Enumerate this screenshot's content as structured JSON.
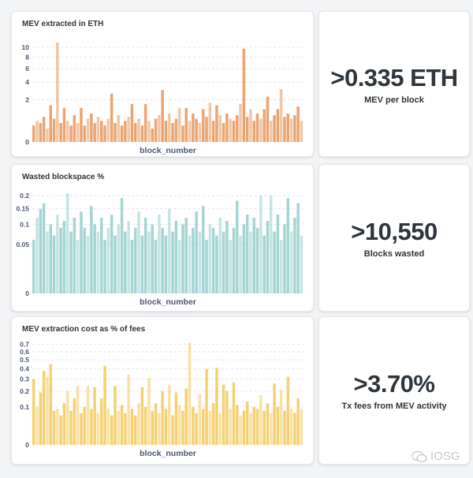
{
  "chart_data": [
    {
      "type": "bar",
      "title": "MEV extracted in ETH",
      "xlabel": "block_number",
      "ylabel": "",
      "yscale": "sqrt",
      "ylim": [
        0,
        11
      ],
      "yticks": [
        0,
        2,
        4,
        6,
        8,
        10
      ],
      "grid": true,
      "color": "#e9a06b",
      "values": [
        0.3,
        0.5,
        0.4,
        0.7,
        0.2,
        1.5,
        0.6,
        11,
        0.4,
        1.3,
        0.5,
        0.3,
        0.8,
        0.4,
        1.3,
        0.3,
        0.6,
        0.9,
        0.4,
        0.7,
        0.5,
        0.3,
        0.6,
        2.6,
        0.4,
        0.8,
        0.3,
        0.5,
        0.7,
        1.6,
        0.4,
        0.6,
        0.3,
        1.6,
        0.5,
        0.2,
        0.6,
        0.8,
        3.0,
        0.5,
        0.9,
        0.4,
        0.6,
        1.3,
        0.3,
        1.3,
        0.5,
        0.9,
        0.6,
        0.4,
        1.2,
        0.7,
        1.7,
        0.5,
        1.5,
        0.8,
        0.4,
        0.9,
        0.6,
        0.5,
        0.8,
        1.6,
        9.7,
        0.7,
        1.2,
        0.5,
        0.9,
        0.6,
        1.2,
        2.3,
        0.5,
        0.8,
        1.2,
        3.1,
        0.7,
        0.9,
        0.6,
        0.8,
        1.4,
        0.5
      ]
    },
    {
      "type": "bar",
      "title": "Wasted blockspace %",
      "xlabel": "block_number",
      "ylabel": "",
      "yscale": "sqrt",
      "ylim": [
        0,
        0.22
      ],
      "yticks": [
        0,
        0.05,
        0.1,
        0.15,
        0.2
      ],
      "grid": true,
      "color": "#9fd3d2",
      "values": [
        0.06,
        0.12,
        0.15,
        0.17,
        0.08,
        0.1,
        0.07,
        0.13,
        0.09,
        0.11,
        0.21,
        0.08,
        0.12,
        0.06,
        0.14,
        0.09,
        0.07,
        0.16,
        0.1,
        0.08,
        0.12,
        0.06,
        0.09,
        0.13,
        0.07,
        0.1,
        0.19,
        0.08,
        0.11,
        0.06,
        0.09,
        0.14,
        0.07,
        0.12,
        0.08,
        0.1,
        0.06,
        0.13,
        0.09,
        0.07,
        0.15,
        0.08,
        0.11,
        0.06,
        0.1,
        0.12,
        0.07,
        0.09,
        0.14,
        0.08,
        0.16,
        0.06,
        0.1,
        0.09,
        0.07,
        0.12,
        0.08,
        0.11,
        0.06,
        0.09,
        0.18,
        0.07,
        0.1,
        0.13,
        0.08,
        0.12,
        0.09,
        0.2,
        0.07,
        0.11,
        0.2,
        0.08,
        0.13,
        0.06,
        0.1,
        0.19,
        0.08,
        0.12,
        0.17,
        0.07
      ]
    },
    {
      "type": "bar",
      "title": "MEV extraction cost as % of fees",
      "xlabel": "block_number",
      "ylabel": "",
      "yscale": "sqrt",
      "ylim": [
        0,
        0.75
      ],
      "yticks": [
        0,
        0.1,
        0.2,
        0.3,
        0.4,
        0.5,
        0.6,
        0.7
      ],
      "grid": true,
      "color": "#f4cf6b",
      "values": [
        0.3,
        0.1,
        0.19,
        0.38,
        0.32,
        0.45,
        0.08,
        0.09,
        0.06,
        0.12,
        0.2,
        0.08,
        0.15,
        0.24,
        0.07,
        0.1,
        0.24,
        0.09,
        0.23,
        0.07,
        0.15,
        0.43,
        0.09,
        0.06,
        0.24,
        0.08,
        0.11,
        0.07,
        0.34,
        0.09,
        0.06,
        0.12,
        0.23,
        0.1,
        0.31,
        0.08,
        0.12,
        0.07,
        0.2,
        0.09,
        0.25,
        0.06,
        0.19,
        0.11,
        0.08,
        0.22,
        0.72,
        0.1,
        0.07,
        0.18,
        0.09,
        0.4,
        0.08,
        0.12,
        0.41,
        0.07,
        0.25,
        0.2,
        0.09,
        0.27,
        0.11,
        0.06,
        0.08,
        0.13,
        0.07,
        0.1,
        0.09,
        0.17,
        0.08,
        0.12,
        0.07,
        0.26,
        0.1,
        0.21,
        0.08,
        0.32,
        0.09,
        0.07,
        0.15,
        0.09
      ]
    }
  ],
  "stats": [
    {
      "value": ">0.335 ETH",
      "label": "MEV per block"
    },
    {
      "value": ">10,550",
      "label": "Blocks wasted"
    },
    {
      "value": ">3.70%",
      "label": "Tx fees from MEV activity"
    }
  ],
  "watermark": "IOSG"
}
